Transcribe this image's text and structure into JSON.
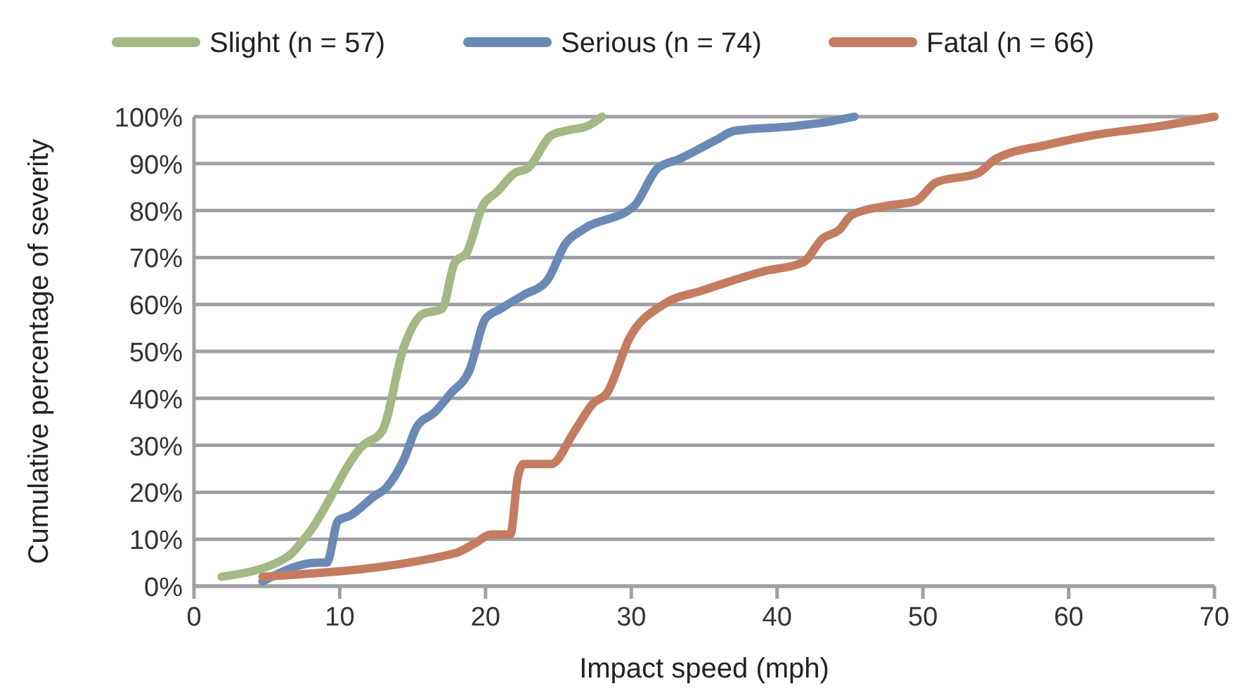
{
  "chart_data": {
    "type": "line",
    "xlabel": "Impact speed (mph)",
    "ylabel": "Cumulative percentage of severity",
    "xlim": [
      0,
      70
    ],
    "xticks": [
      0,
      10,
      20,
      30,
      40,
      50,
      60,
      70
    ],
    "ylim": [
      0,
      100
    ],
    "yticks": [
      {
        "value": 0,
        "label": "0%"
      },
      {
        "value": 10,
        "label": "10%"
      },
      {
        "value": 20,
        "label": "20%"
      },
      {
        "value": 30,
        "label": "30%"
      },
      {
        "value": 40,
        "label": "40%"
      },
      {
        "value": 50,
        "label": "50%"
      },
      {
        "value": 60,
        "label": "60%"
      },
      {
        "value": 70,
        "label": "70%"
      },
      {
        "value": 80,
        "label": "80%"
      },
      {
        "value": 90,
        "label": "90%"
      },
      {
        "value": 100,
        "label": "100%"
      }
    ],
    "grid": "y",
    "legend": "top",
    "line_style": "solid",
    "series": [
      {
        "name": "Slight (n = 57)",
        "color": "#a3b883",
        "x": [
          1.9,
          6.3,
          7.8,
          11.6,
          12.9,
          14.4,
          15.7,
          17,
          17.9,
          18.7,
          19.8,
          20.8,
          22,
          22.9,
          24.5,
          25.5,
          27,
          28
        ],
        "values": [
          2,
          6,
          11,
          30,
          33,
          51,
          58,
          59,
          69,
          71,
          81,
          84,
          88,
          89,
          96,
          97,
          98,
          100
        ]
      },
      {
        "name": "Serious (n = 74)",
        "color": "#6a8ab5",
        "x": [
          4.7,
          8.5,
          9.1,
          9.9,
          10.7,
          12.3,
          13.2,
          14.4,
          15.3,
          16.5,
          17.6,
          18.9,
          20,
          21,
          22.6,
          24.2,
          25.5,
          26.7,
          30.2,
          31.8,
          33.3,
          35.8,
          37.1,
          41.2,
          43.7,
          45.3
        ],
        "values": [
          1,
          5,
          5,
          14,
          15,
          19,
          21,
          27,
          34,
          37,
          41,
          46,
          57,
          59,
          62,
          65,
          73,
          76,
          81,
          89,
          91,
          95,
          97,
          98,
          99,
          100
        ]
      },
      {
        "name": "Fatal (n = 66)",
        "color": "#c47c60",
        "x": [
          4.7,
          17.9,
          19.2,
          20.4,
          21.7,
          22.2,
          22.6,
          24.5,
          26.1,
          27.4,
          28.3,
          29.9,
          32.2,
          34.9,
          39,
          41.8,
          43.1,
          44.3,
          45.1,
          47.5,
          49.5,
          50.9,
          53.8,
          55,
          58.5,
          61.6,
          66.3,
          70
        ],
        "values": [
          2,
          7,
          9,
          11,
          11,
          23,
          26,
          26,
          33,
          39,
          41,
          53,
          60,
          63,
          67,
          69,
          74,
          76,
          79,
          81,
          82,
          86,
          88,
          91,
          94,
          96,
          98,
          100
        ]
      }
    ]
  }
}
